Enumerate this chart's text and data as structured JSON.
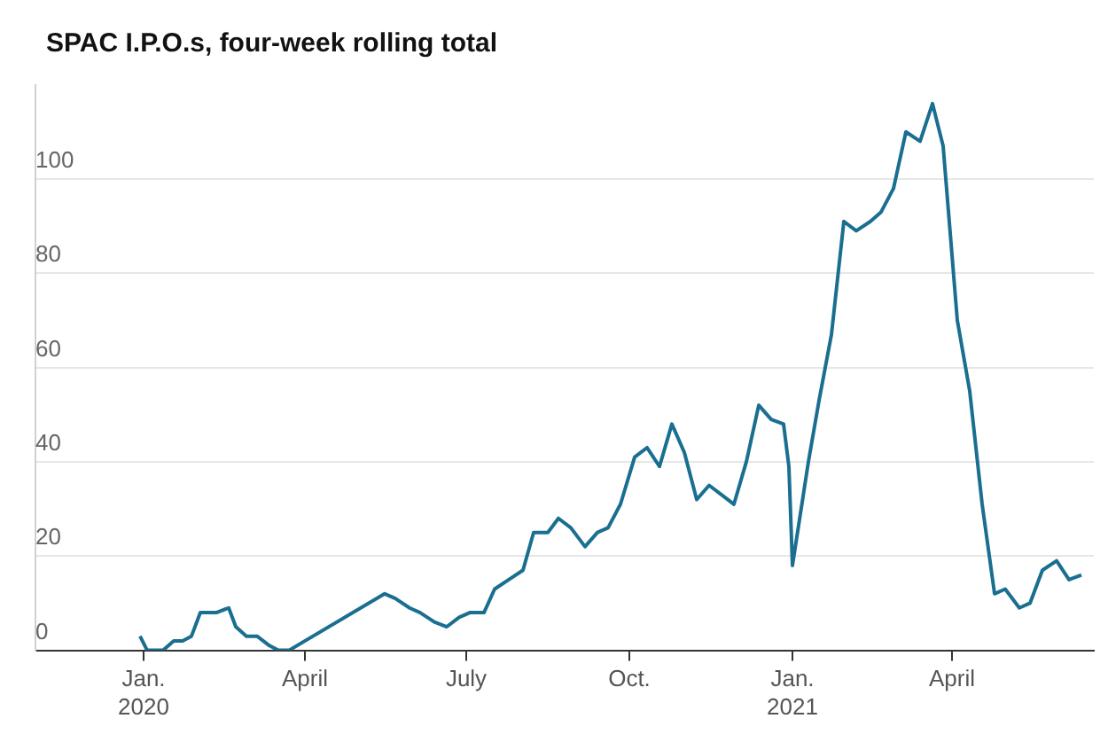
{
  "chart_data": {
    "type": "line",
    "title": "SPAC I.P.O.s, four-week rolling total",
    "x": [
      "2019-12-30",
      "2020-01-03",
      "2020-01-12",
      "2020-01-18",
      "2020-01-23",
      "2020-01-28",
      "2020-02-02",
      "2020-02-11",
      "2020-02-18",
      "2020-02-22",
      "2020-02-28",
      "2020-03-05",
      "2020-03-12",
      "2020-03-17",
      "2020-03-23",
      "2020-05-16",
      "2020-05-22",
      "2020-05-30",
      "2020-06-05",
      "2020-06-13",
      "2020-06-20",
      "2020-06-27",
      "2020-07-03",
      "2020-07-11",
      "2020-07-17",
      "2020-07-25",
      "2020-08-02",
      "2020-08-08",
      "2020-08-16",
      "2020-08-22",
      "2020-08-29",
      "2020-09-06",
      "2020-09-13",
      "2020-09-19",
      "2020-09-26",
      "2020-10-04",
      "2020-10-11",
      "2020-10-18",
      "2020-10-25",
      "2020-11-01",
      "2020-11-08",
      "2020-11-15",
      "2020-11-22",
      "2020-11-29",
      "2020-12-06",
      "2020-12-13",
      "2020-12-20",
      "2020-12-27",
      "2020-12-30",
      "2021-01-01",
      "2021-01-10",
      "2021-01-16",
      "2021-01-23",
      "2021-01-30",
      "2021-02-06",
      "2021-02-14",
      "2021-02-20",
      "2021-02-27",
      "2021-03-06",
      "2021-03-14",
      "2021-03-21",
      "2021-03-27",
      "2021-04-04",
      "2021-04-11",
      "2021-04-18",
      "2021-04-25",
      "2021-05-01",
      "2021-05-09",
      "2021-05-15",
      "2021-05-22",
      "2021-05-30",
      "2021-06-06",
      "2021-06-13"
    ],
    "series": [
      {
        "color": "#1a6f91",
        "values": [
          3,
          0,
          0,
          2,
          2,
          3,
          8,
          8,
          9,
          5,
          3,
          3,
          1,
          0,
          0,
          12,
          11,
          9,
          8,
          6,
          5,
          7,
          8,
          8,
          13,
          15,
          17,
          25,
          25,
          28,
          26,
          22,
          25,
          26,
          31,
          41,
          43,
          39,
          48,
          42,
          32,
          35,
          33,
          31,
          40,
          52,
          49,
          48,
          39,
          18,
          40,
          53,
          67,
          91,
          89,
          91,
          93,
          98,
          110,
          108,
          116,
          107,
          70,
          55,
          31,
          12,
          13,
          9,
          10,
          17,
          19,
          15,
          16
        ]
      }
    ],
    "xlim": [
      "2019-11-01",
      "2021-06-20"
    ],
    "xticks": [
      {
        "value": "2020-01-01",
        "label": "Jan.\n2020"
      },
      {
        "value": "2020-04-01",
        "label": "April"
      },
      {
        "value": "2020-07-01",
        "label": "July"
      },
      {
        "value": "2020-10-01",
        "label": "Oct."
      },
      {
        "value": "2021-01-01",
        "label": "Jan.\n2021"
      },
      {
        "value": "2021-04-01",
        "label": "April"
      }
    ],
    "ylim": [
      0,
      120
    ],
    "yticks": [
      0,
      20,
      40,
      60,
      80,
      100
    ],
    "grid": "y",
    "legend": false,
    "marker": "none",
    "line_style": "solid"
  }
}
